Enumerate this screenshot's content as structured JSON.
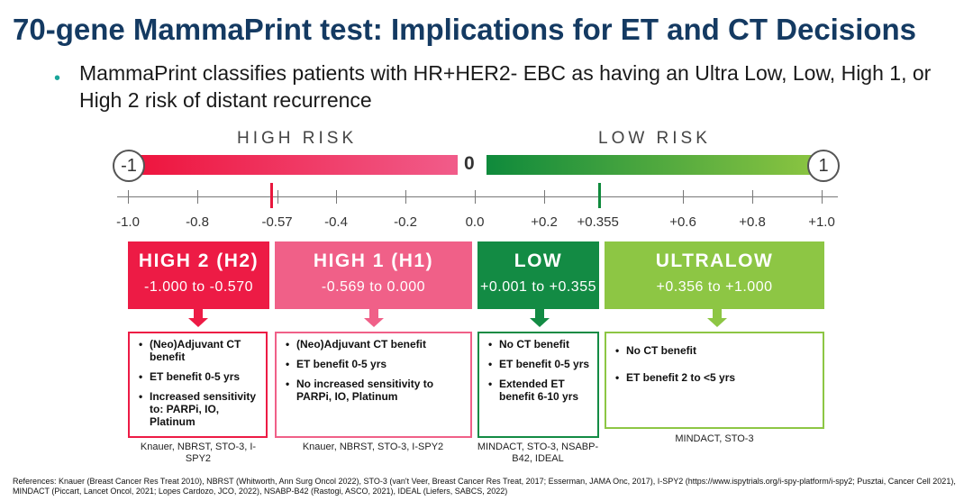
{
  "title": "70-gene MammaPrint test: Implications for ET and CT Decisions",
  "bullet": "MammaPrint classifies patients with HR+HER2- EBC as having an Ultra Low, Low, High 1, or High 2 risk of distant recurrence",
  "bullet_mark": "•",
  "scale": {
    "high_risk_label": "HIGH RISK",
    "low_risk_label": "LOW RISK",
    "left_end": "-1",
    "center": "0",
    "right_end": "1",
    "ticks": [
      "-1.0",
      "-0.8",
      "-0.57",
      "-0.4",
      "-0.2",
      "0.0",
      "+0.2",
      "+0.355",
      "+0.6",
      "+0.8",
      "+1.0"
    ],
    "colors": {
      "high": "#ee123b",
      "low": "#0f8a3c",
      "threshold_high": "#e8173d",
      "threshold_low": "#0f8a3c"
    }
  },
  "categories": [
    {
      "name": "HIGH 2 (H2)",
      "range": "-1.000  to  -0.570",
      "color": "#ed1b45",
      "benefits": [
        "(Neo)Adjuvant CT benefit",
        "ET benefit 0-5 yrs",
        "Increased sensitivity to: PARPi, IO, Platinum"
      ],
      "studies": "Knauer, NBRST, STO-3, I-SPY2"
    },
    {
      "name": "HIGH 1 (H1)",
      "range": "-0.569  to  0.000",
      "color": "#f06088",
      "benefits": [
        "(Neo)Adjuvant  CT benefit",
        "ET benefit 0-5 yrs",
        "No increased sensitivity to PARPi, IO, Platinum"
      ],
      "studies": "Knauer, NBRST, STO-3, I-SPY2"
    },
    {
      "name": "LOW",
      "range": "+0.001  to  +0.355",
      "color": "#138b44",
      "benefits": [
        "No CT benefit",
        "ET benefit 0-5 yrs",
        "Extended ET benefit 6-10 yrs"
      ],
      "studies": "MINDACT, STO-3, NSABP-B42, IDEAL"
    },
    {
      "name": "ULTRALOW",
      "range": "+0.356  to  +1.000",
      "color": "#8dc644",
      "benefits": [
        "No CT benefit",
        "ET benefit  2 to <5 yrs"
      ],
      "studies": "MINDACT, STO-3"
    }
  ],
  "references": "References: Knauer (Breast Cancer Res Treat 2010), NBRST (Whitworth, Ann Surg Oncol 2022), STO-3 (van't Veer, Breast Cancer Res Treat, 2017; Esserman, JAMA Onc, 2017), I-SPY2 (https://www.ispytrials.org/i-spy-platform/i-spy2; Pusztai, Cancer Cell 2021), MINDACT (Piccart, Lancet Oncol, 2021; Lopes Cardozo, JCO, 2022), NSABP-B42 (Rastogi, ASCO, 2021), IDEAL (Liefers, SABCS, 2022)"
}
